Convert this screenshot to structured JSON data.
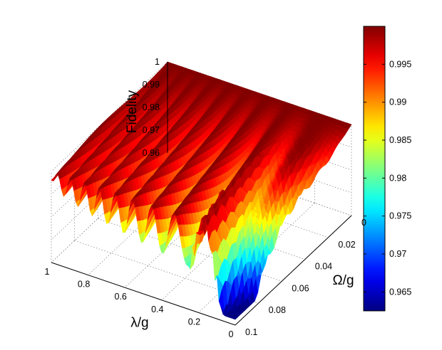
{
  "chart_data": {
    "type": "surface3d",
    "title": "",
    "zlabel": "Fidelity",
    "xlabel": "λ/g",
    "ylabel": "Ω/g",
    "x_ticks": [
      "1",
      "0.8",
      "0.6",
      "0.4",
      "0.2",
      "0"
    ],
    "y_ticks": [
      "0",
      "0.02",
      "0.04",
      "0.06",
      "0.08",
      "0.1"
    ],
    "z_ticks": [
      "1",
      "0.99",
      "0.98",
      "0.97",
      "0.96"
    ],
    "xlim": [
      0,
      1
    ],
    "ylim": [
      0,
      0.1
    ],
    "zlim": [
      0.96,
      1
    ],
    "grid": true,
    "colormap": "jet",
    "colorbar": {
      "range": [
        0.9625,
        1.0
      ],
      "ticks": [
        "0.995",
        "0.99",
        "0.985",
        "0.98",
        "0.975",
        "0.97",
        "0.965"
      ],
      "placement": "right"
    },
    "surface_features": {
      "min_fidelity": 0.9625,
      "min_location": {
        "lambda_over_g": 0.05,
        "omega_over_g": 0.095
      },
      "max_fidelity": 1.0,
      "max_region": "small Ω/g",
      "oscillating_along": "λ/g"
    }
  }
}
